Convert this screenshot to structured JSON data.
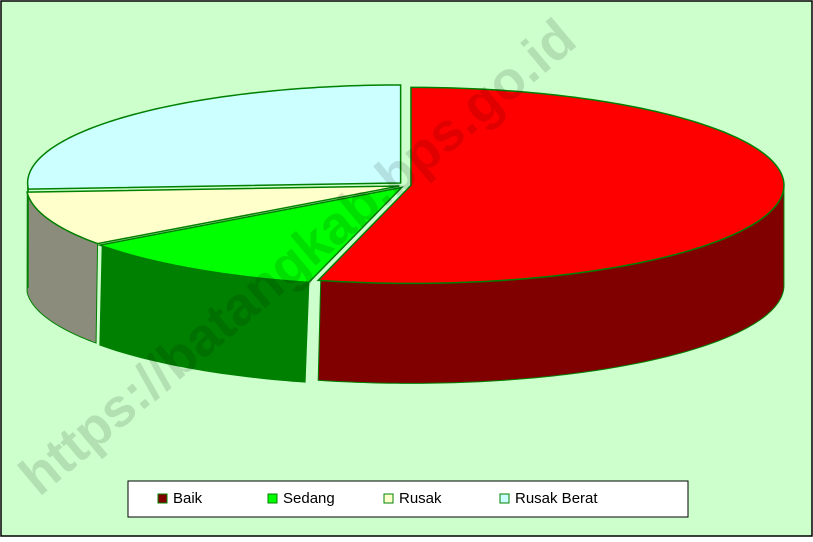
{
  "chart_data": {
    "type": "pie3d",
    "categories": [
      "Baik",
      "Sedang",
      "Rusak",
      "Rusak Berat"
    ],
    "values": [
      54,
      11,
      9,
      26
    ],
    "colors": [
      "#ff0000",
      "#00ff00",
      "#ffffcc",
      "#ccffff"
    ],
    "depth_colors": [
      "#800000",
      "#008000",
      "#8c8c7c",
      "#8cb0b0"
    ],
    "legend": "bottom",
    "watermark": "https://batangkab.bps.go.id"
  }
}
